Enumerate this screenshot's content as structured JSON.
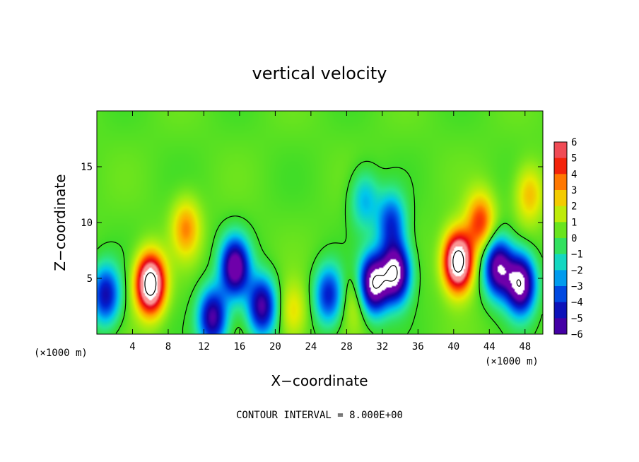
{
  "chart_data": {
    "type": "heatmap",
    "title": "vertical velocity",
    "xlabel": "X−coordinate",
    "ylabel": "Z−coordinate",
    "x_unit_label": "(×1000 m)",
    "x_unit_label_right": "(×1000 m)",
    "xlim": [
      0,
      50
    ],
    "ylim": [
      0,
      20
    ],
    "x_ticks": [
      4,
      8,
      12,
      16,
      20,
      24,
      28,
      32,
      36,
      40,
      44,
      48
    ],
    "y_ticks": [
      5,
      10,
      15
    ],
    "colorbar": {
      "ticks": [
        6,
        5,
        4,
        3,
        2,
        1,
        0,
        -1,
        -2,
        -3,
        -4,
        -5,
        -6
      ],
      "tick_labels": [
        "6",
        "5",
        "4",
        "3",
        "2",
        "1",
        "0",
        "−1",
        "−2",
        "−3",
        "−4",
        "−5",
        "−6"
      ],
      "range": [
        -6,
        6
      ]
    },
    "contour_interval_text": "CONTOUR INTERVAL =  8.000E+00",
    "contour_interval": 8.0,
    "features": [
      {
        "x": 6,
        "z": 4.5,
        "value": 9
      },
      {
        "x": 40.5,
        "z": 6.5,
        "value": 9
      },
      {
        "x": 33.5,
        "z": 5.5,
        "value": -8
      },
      {
        "x": 31,
        "z": 4.5,
        "value": -8
      },
      {
        "x": 47.5,
        "z": 4.5,
        "value": -8
      },
      {
        "x": 15.5,
        "z": 6,
        "value": -7
      },
      {
        "x": 45,
        "z": 6,
        "value": -7
      },
      {
        "x": 18.5,
        "z": 2.5,
        "value": -6
      },
      {
        "x": 13,
        "z": 1.5,
        "value": -6
      },
      {
        "x": 26,
        "z": 3.5,
        "value": -4.5
      },
      {
        "x": 1,
        "z": 3.5,
        "value": -5
      },
      {
        "x": 10,
        "z": 9.5,
        "value": 3
      },
      {
        "x": 43,
        "z": 10,
        "value": 4
      },
      {
        "x": 48.5,
        "z": 12.5,
        "value": 2.5
      },
      {
        "x": 22,
        "z": 2,
        "value": 2
      },
      {
        "x": 29,
        "z": 3,
        "value": 1.5
      },
      {
        "x": 30,
        "z": 12,
        "value": -2.5
      },
      {
        "x": 33,
        "z": 10,
        "value": -4
      }
    ],
    "colors": {
      "positive_white": "#ffffff",
      "zero": "#33dd33",
      "negative_deep": "#7b00b0"
    }
  }
}
